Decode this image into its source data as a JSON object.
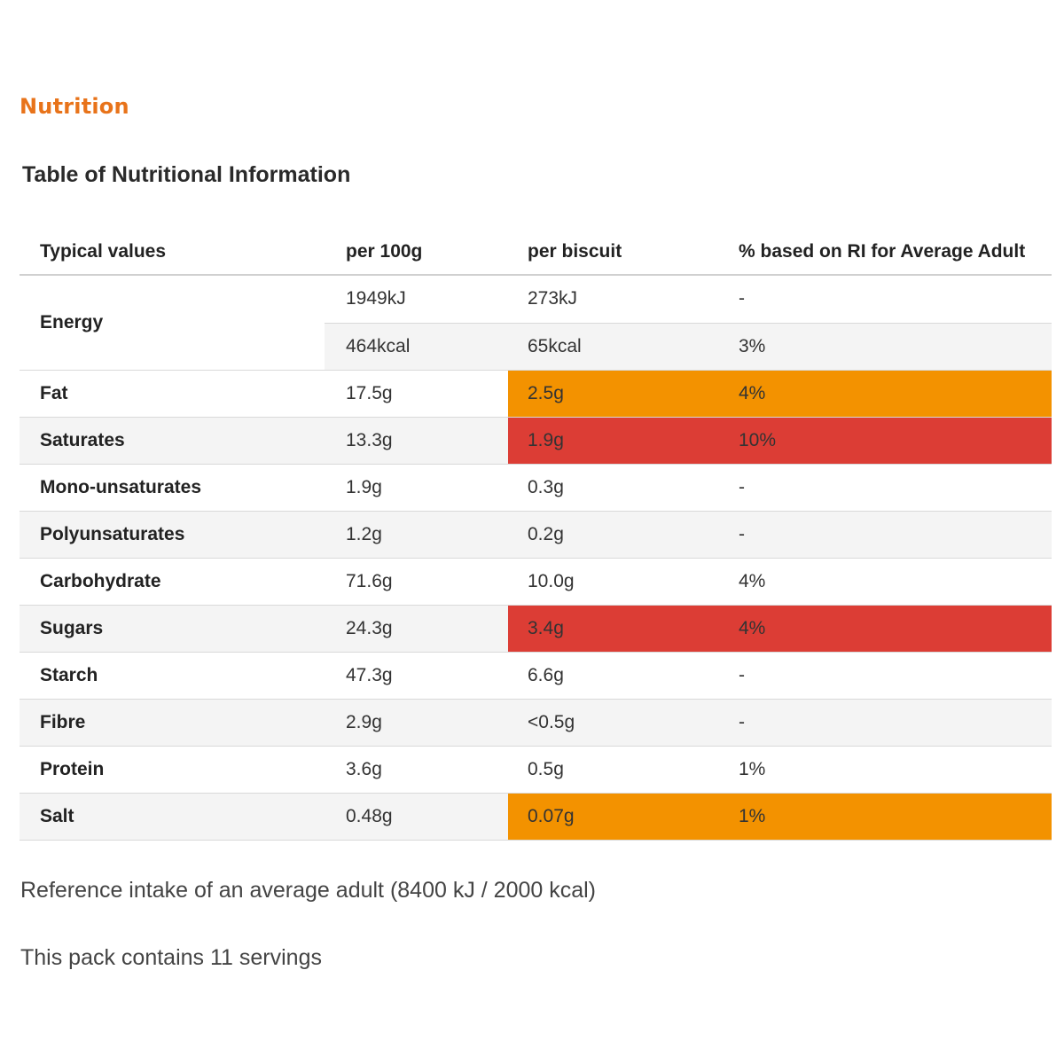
{
  "section_heading": "Nutrition",
  "table_title": "Table of Nutritional Information",
  "columns": [
    "Typical values",
    "per 100g",
    "per biscuit",
    "% based on RI for Average Adult"
  ],
  "energy": {
    "label": "Energy",
    "rows": [
      {
        "per100g": "1949kJ",
        "perBiscuit": "273kJ",
        "ri": "-"
      },
      {
        "per100g": "464kcal",
        "perBiscuit": "65kcal",
        "ri": "3%"
      }
    ]
  },
  "rows": [
    {
      "name": "Fat",
      "per100g": "17.5g",
      "perBiscuit": "2.5g",
      "ri": "4%",
      "highlight": "amber",
      "highlight_color": "#f39200"
    },
    {
      "name": "Saturates",
      "per100g": "13.3g",
      "perBiscuit": "1.9g",
      "ri": "10%",
      "highlight": "red",
      "highlight_color": "#dc3d35"
    },
    {
      "name": "Mono-unsaturates",
      "per100g": "1.9g",
      "perBiscuit": "0.3g",
      "ri": "-",
      "highlight": "none"
    },
    {
      "name": "Polyunsaturates",
      "per100g": "1.2g",
      "perBiscuit": "0.2g",
      "ri": "-",
      "highlight": "none"
    },
    {
      "name": "Carbohydrate",
      "per100g": "71.6g",
      "perBiscuit": "10.0g",
      "ri": "4%",
      "highlight": "none"
    },
    {
      "name": "Sugars",
      "per100g": "24.3g",
      "perBiscuit": "3.4g",
      "ri": "4%",
      "highlight": "red",
      "highlight_color": "#dc3d35"
    },
    {
      "name": "Starch",
      "per100g": "47.3g",
      "perBiscuit": "6.6g",
      "ri": "-",
      "highlight": "none"
    },
    {
      "name": "Fibre",
      "per100g": "2.9g",
      "perBiscuit": "<0.5g",
      "ri": "-",
      "highlight": "none"
    },
    {
      "name": "Protein",
      "per100g": "3.6g",
      "perBiscuit": "0.5g",
      "ri": "1%",
      "highlight": "none"
    },
    {
      "name": "Salt",
      "per100g": "0.48g",
      "perBiscuit": "0.07g",
      "ri": "1%",
      "highlight": "amber",
      "highlight_color": "#f39200"
    }
  ],
  "notes": {
    "reference": "Reference intake of an average adult (8400 kJ / 2000 kcal)",
    "servings": "This pack contains 11 servings"
  },
  "colors": {
    "heading": "#e8731a",
    "amber": "#f39200",
    "red": "#dc3d35",
    "shade": "#f4f4f4"
  }
}
